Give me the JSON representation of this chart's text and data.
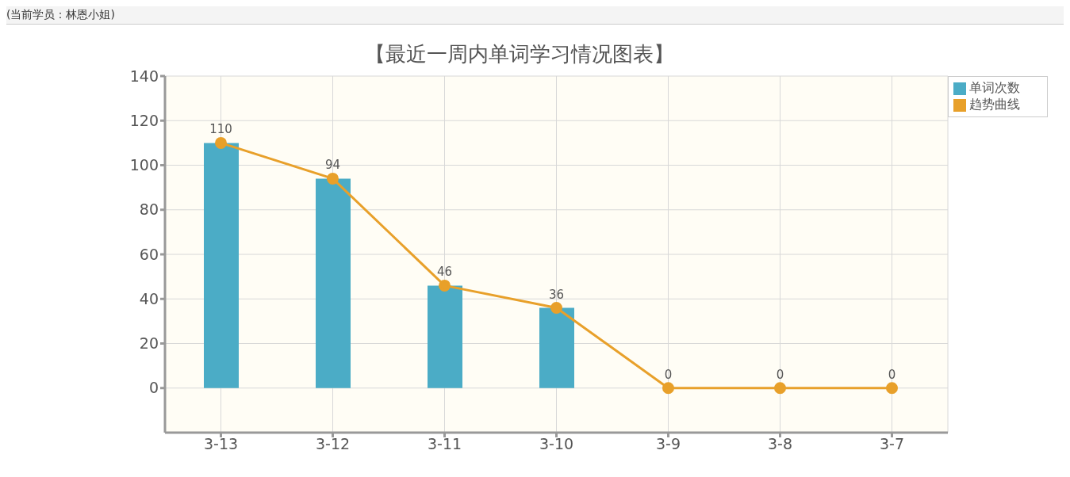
{
  "chart_data": {
    "type": "bar",
    "title": "【最近一周内单词学习情况图表】",
    "annotations": [
      "(当前学员：林恩小姐)"
    ],
    "categories": [
      "3-13",
      "3-12",
      "3-11",
      "3-10",
      "3-9",
      "3-8",
      "3-7"
    ],
    "series": [
      {
        "name": "单词次数",
        "color": "#4bacc6",
        "values": [
          110,
          94,
          46,
          36,
          0,
          0,
          0
        ]
      },
      {
        "name": "趋势曲线",
        "type": "line",
        "color": "#e8a02a",
        "values": [
          110,
          94,
          46,
          36,
          0,
          0,
          0
        ],
        "value_labels": [
          "110",
          "94",
          "46",
          "36",
          "0",
          "0",
          "0"
        ]
      }
    ],
    "ylim": [
      -20,
      140
    ],
    "yticks": [
      0,
      20,
      40,
      60,
      80,
      100,
      120,
      140
    ],
    "grid": true,
    "legend": "top right",
    "marker": "circle"
  }
}
